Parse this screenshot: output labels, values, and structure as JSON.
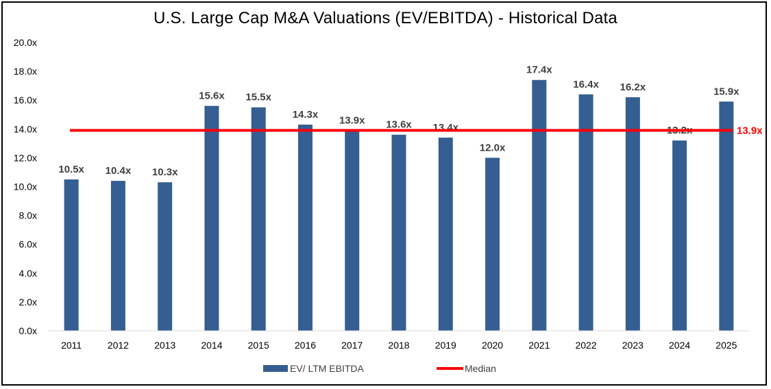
{
  "chart_data": {
    "type": "bar",
    "title": "U.S. Large Cap M&A Valuations (EV/EBITDA) - Historical Data",
    "categories": [
      "2011",
      "2012",
      "2013",
      "2014",
      "2015",
      "2016",
      "2017",
      "2018",
      "2019",
      "2020",
      "2021",
      "2022",
      "2023",
      "2024",
      "2025"
    ],
    "series": [
      {
        "name": "EV/ LTM EBITDA",
        "type": "bar",
        "values": [
          10.5,
          10.4,
          10.3,
          15.6,
          15.5,
          14.3,
          13.9,
          13.6,
          13.4,
          12.0,
          17.4,
          16.4,
          16.2,
          13.2,
          15.9
        ],
        "labels": [
          "10.5x",
          "10.4x",
          "10.3x",
          "15.6x",
          "15.5x",
          "14.3x",
          "13.9x",
          "13.6x",
          "13.4x",
          "12.0x",
          "17.4x",
          "16.4x",
          "16.2x",
          "13.2x",
          "15.9x"
        ],
        "color": "#355E92"
      },
      {
        "name": "Median",
        "type": "line",
        "value": 13.9,
        "label": "13.9x",
        "color": "#FF0000"
      }
    ],
    "ylim": [
      0,
      20
    ],
    "yticks": [
      "0.0x",
      "2.0x",
      "4.0x",
      "6.0x",
      "8.0x",
      "10.0x",
      "12.0x",
      "14.0x",
      "16.0x",
      "18.0x",
      "20.0x"
    ],
    "ytick_values": [
      0,
      2,
      4,
      6,
      8,
      10,
      12,
      14,
      16,
      18,
      20
    ],
    "xlabel": "",
    "ylabel": "",
    "grid": false,
    "legend_position": "bottom-center",
    "label_color": "#404040",
    "axis_color": "#D9D9D9"
  }
}
